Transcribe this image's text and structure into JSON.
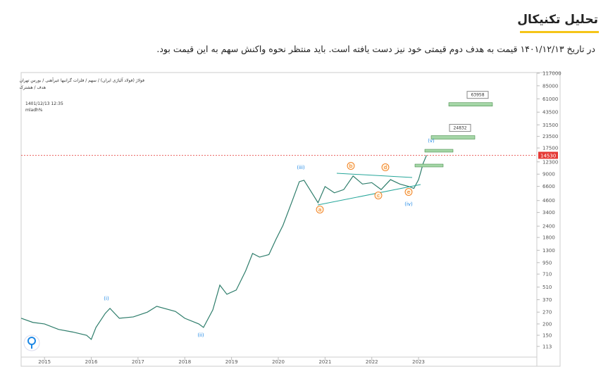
{
  "header": {
    "title": "تحلیل تکنیکال"
  },
  "paragraph": "در تاریخ ۱۴۰۱/۱۲/۱۳ قیمت به هدف دوم قیمتی خود نیز دست یافته است. باید منتظر نحوه واکنش سهم به این قیمت بود.",
  "chart_data": {
    "type": "line",
    "title": "فولاژ (فولاد آلیاژی ایران) / سهم / فلزات گرانبها غیرآهنی / بورس تهران",
    "subtitle": "هدف / هشترک",
    "date_label": "1401/12/13 12:35",
    "author": "mladh%",
    "x": [
      2014.5,
      2014.75,
      2015.0,
      2015.3,
      2015.6,
      2015.9,
      2016.0,
      2016.1,
      2016.3,
      2016.4,
      2016.6,
      2016.9,
      2017.2,
      2017.4,
      2017.8,
      2018.0,
      2018.3,
      2018.4,
      2018.6,
      2018.75,
      2018.9,
      2019.1,
      2019.3,
      2019.45,
      2019.6,
      2019.8,
      2019.95,
      2020.1,
      2020.3,
      2020.45,
      2020.55,
      2020.7,
      2020.85,
      2021.0,
      2021.2,
      2021.4,
      2021.6,
      2021.8,
      2022.0,
      2022.2,
      2022.4,
      2022.6,
      2022.8,
      2022.9,
      2023.0,
      2023.05,
      2023.1,
      2023.17
    ],
    "series": [
      {
        "name": "فولاژ",
        "color": "#2e7d6b",
        "values": [
          231,
          208,
          200,
          174,
          163,
          150,
          135,
          183,
          262,
          297,
          231,
          239,
          270,
          313,
          275,
          231,
          200,
          183,
          286,
          536,
          425,
          473,
          766,
          1199,
          1093,
          1166,
          1714,
          2449,
          4584,
          7430,
          7700,
          5800,
          4350,
          6560,
          5600,
          6080,
          8580,
          7000,
          7250,
          6080,
          7830,
          7000,
          6560,
          6260,
          7830,
          9620,
          11900,
          14530
        ]
      }
    ],
    "last_price": 14530,
    "targets": [
      24832,
      63958
    ],
    "waves": [
      "(i)",
      "(ii)",
      "(iii)",
      "(iv)",
      "(v)",
      "a",
      "b",
      "c",
      "d",
      "e"
    ],
    "xlim": [
      2014.5,
      2025.53
    ],
    "xticks": [
      2015,
      2016,
      2017,
      2018,
      2019,
      2020,
      2021,
      2022,
      2023
    ],
    "ylim": [
      72,
      119000
    ],
    "yticks": [
      113,
      150,
      200,
      270,
      370,
      510,
      710,
      950,
      1300,
      1800,
      2400,
      3400,
      4600,
      6600,
      9000,
      12300,
      17500,
      23500,
      31500,
      43500,
      61000,
      85000,
      117000
    ],
    "log_scale": true
  }
}
